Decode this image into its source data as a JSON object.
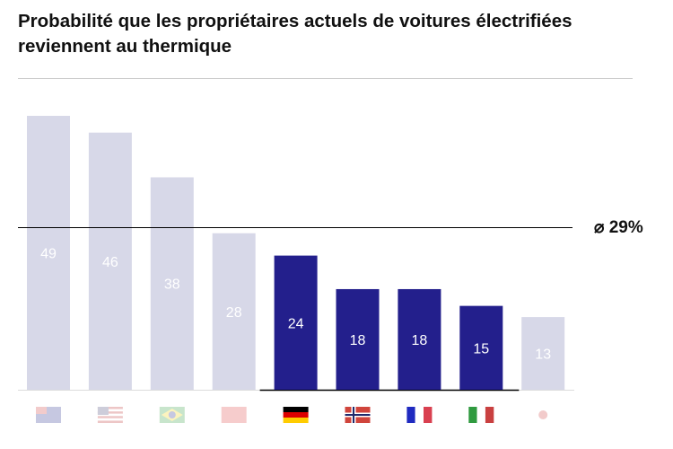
{
  "title": "Probabilité que les propriétaires actuels de voitures électrifiées reviennent au thermique",
  "chart_data": {
    "type": "bar",
    "title": "Probabilité que les propriétaires actuels de voitures électrifiées reviennent au thermique",
    "categories": [
      "australia-flag-icon",
      "usa-flag-icon",
      "brazil-flag-icon",
      "china-flag-icon",
      "germany-flag-icon",
      "norway-flag-icon",
      "france-flag-icon",
      "italy-flag-icon",
      "japan-flag-icon"
    ],
    "values": [
      49,
      46,
      38,
      28,
      24,
      18,
      18,
      15,
      13
    ],
    "highlighted": [
      false,
      false,
      false,
      false,
      true,
      true,
      true,
      true,
      false
    ],
    "average": 29,
    "average_label": "⌀ 29%",
    "ylim": [
      0,
      49
    ],
    "grid": false,
    "colors": {
      "highlight": "#231f8c",
      "faded": "#d7d8e8",
      "label": "#ffffff",
      "average_line": "#000000"
    }
  }
}
